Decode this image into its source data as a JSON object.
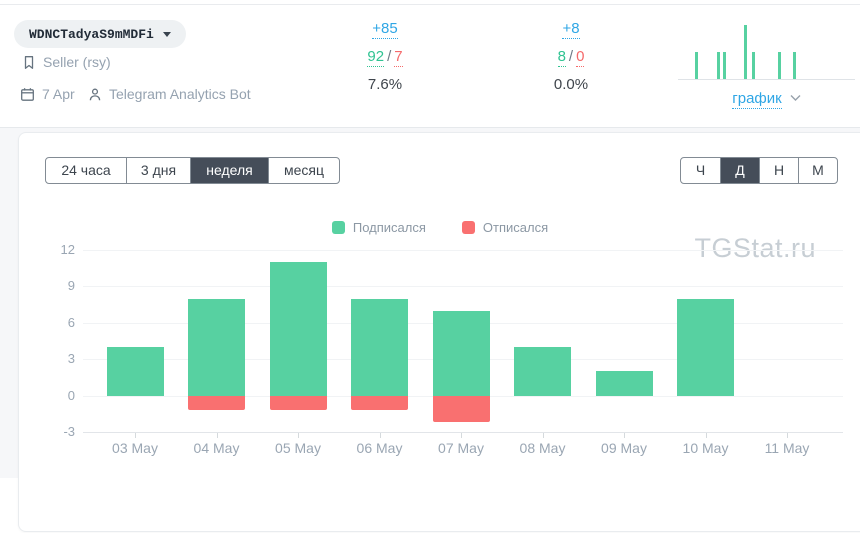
{
  "header": {
    "channel_name": "WDNCTadyaS9mMDFi",
    "category_label": "Seller (rsy)",
    "created_date": "7 Apr",
    "bot_name": "Telegram Analytics Bot",
    "slash": "/",
    "stats": [
      {
        "net": "+85",
        "subscribed": "92",
        "unsubscribed": "7",
        "percent": "7.6%"
      },
      {
        "net": "+8",
        "subscribed": "8",
        "unsubscribed": "0",
        "percent": "0.0%"
      }
    ],
    "sparkline": {
      "bars": [
        {
          "x": 17,
          "v": 1
        },
        {
          "x": 39,
          "v": 1
        },
        {
          "x": 45,
          "v": 1
        },
        {
          "x": 66,
          "v": 2
        },
        {
          "x": 74,
          "v": 1
        },
        {
          "x": 100,
          "v": 1
        },
        {
          "x": 115,
          "v": 1
        }
      ],
      "link_label": "график"
    }
  },
  "toolbar": {
    "periods": [
      {
        "label": "24 часа",
        "active": false
      },
      {
        "label": "3 дня",
        "active": false
      },
      {
        "label": "неделя",
        "active": true
      },
      {
        "label": "месяц",
        "active": false
      }
    ],
    "granularity": [
      {
        "label": "Ч",
        "active": false
      },
      {
        "label": "Д",
        "active": true
      },
      {
        "label": "Н",
        "active": false
      },
      {
        "label": "М",
        "active": false
      }
    ]
  },
  "watermark": "TGStat.ru",
  "chart_data": {
    "type": "bar",
    "stacked": true,
    "title": "",
    "categories": [
      "03 May",
      "04 May",
      "05 May",
      "06 May",
      "07 May",
      "08 May",
      "09 May",
      "10 May",
      "11 May"
    ],
    "series": [
      {
        "name": "Подписался",
        "color": "#57d1a1",
        "values": [
          4,
          8,
          11,
          8,
          7,
          4,
          2,
          8,
          0
        ]
      },
      {
        "name": "Отписался",
        "color": "#f97070",
        "values": [
          0,
          -1,
          -1,
          -1,
          -2,
          0,
          0,
          0,
          0
        ]
      }
    ],
    "ylim": [
      -3,
      12
    ],
    "yticks": [
      12,
      9,
      6,
      3,
      0,
      -3
    ],
    "grid": true,
    "legend_position": "top-center"
  },
  "colors": {
    "accent_blue": "#2fa6e5",
    "green": "#57d1a1",
    "red": "#f97070",
    "selected_button_bg": "#454d59",
    "muted_text": "#95a2b0",
    "axis_text": "#9aa6b3",
    "watermark_text": "#c7ced4"
  }
}
